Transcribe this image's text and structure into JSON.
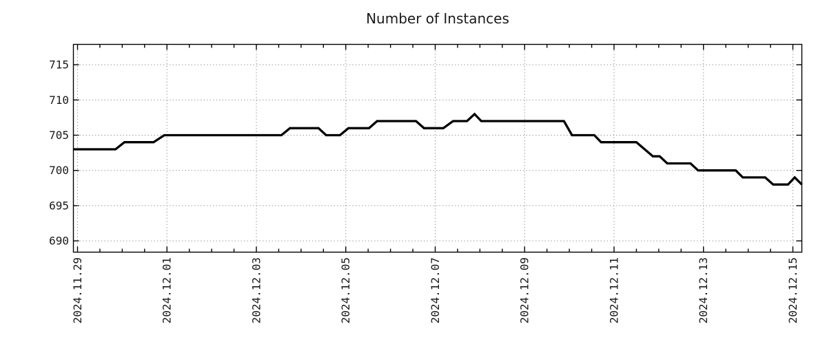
{
  "title": "Number of Instances",
  "colors": {
    "background": "#ffffff",
    "line": "#000000",
    "grid": "#9a9a9a",
    "axis": "#000000",
    "text": "#1a1a1a"
  },
  "chart_data": {
    "type": "line",
    "title": "Number of Instances",
    "xlabel": "",
    "ylabel": "",
    "legend": "none",
    "grid": "dotted at major ticks, both axes",
    "x_time_origin": "2024-11-29 00:00",
    "x_unit": "days since 2024-11-29 00:00",
    "xlim": [
      -0.0925,
      16.2005
    ],
    "ylim": [
      688.4,
      717.89
    ],
    "y_ticks": [
      690,
      695,
      700,
      705,
      710,
      715
    ],
    "x_ticks_major": [
      {
        "t": 0,
        "label": "2024.11.29"
      },
      {
        "t": 2,
        "label": "2024.12.01"
      },
      {
        "t": 4,
        "label": "2024.12.03"
      },
      {
        "t": 6,
        "label": "2024.12.05"
      },
      {
        "t": 8,
        "label": "2024.12.07"
      },
      {
        "t": 10,
        "label": "2024.12.09"
      },
      {
        "t": 12,
        "label": "2024.12.11"
      },
      {
        "t": 14,
        "label": "2024.12.13"
      },
      {
        "t": 16,
        "label": "2024.12.15"
      }
    ],
    "x_minor_tick_interval": 0.5,
    "series": [
      {
        "name": "Number of Instances",
        "color": "#000000",
        "points": [
          [
            -0.09,
            703
          ],
          [
            0.85,
            703
          ],
          [
            1.05,
            704
          ],
          [
            1.7,
            704
          ],
          [
            1.94,
            705
          ],
          [
            4.56,
            705
          ],
          [
            4.75,
            706
          ],
          [
            5.39,
            706
          ],
          [
            5.56,
            705
          ],
          [
            5.87,
            705
          ],
          [
            6.06,
            706
          ],
          [
            6.52,
            706
          ],
          [
            6.7,
            707
          ],
          [
            7.57,
            707
          ],
          [
            7.75,
            706
          ],
          [
            8.18,
            706
          ],
          [
            8.4,
            707
          ],
          [
            8.71,
            707
          ],
          [
            8.88,
            708
          ],
          [
            9.03,
            707
          ],
          [
            10.88,
            707
          ],
          [
            11.06,
            705
          ],
          [
            11.56,
            705
          ],
          [
            11.71,
            704
          ],
          [
            12.5,
            704
          ],
          [
            12.87,
            702
          ],
          [
            13.02,
            702
          ],
          [
            13.19,
            701
          ],
          [
            13.71,
            701
          ],
          [
            13.88,
            700
          ],
          [
            14.72,
            700
          ],
          [
            14.88,
            699
          ],
          [
            15.38,
            699
          ],
          [
            15.56,
            698
          ],
          [
            15.89,
            698
          ],
          [
            16.04,
            699
          ],
          [
            16.2,
            698
          ]
        ]
      }
    ]
  }
}
